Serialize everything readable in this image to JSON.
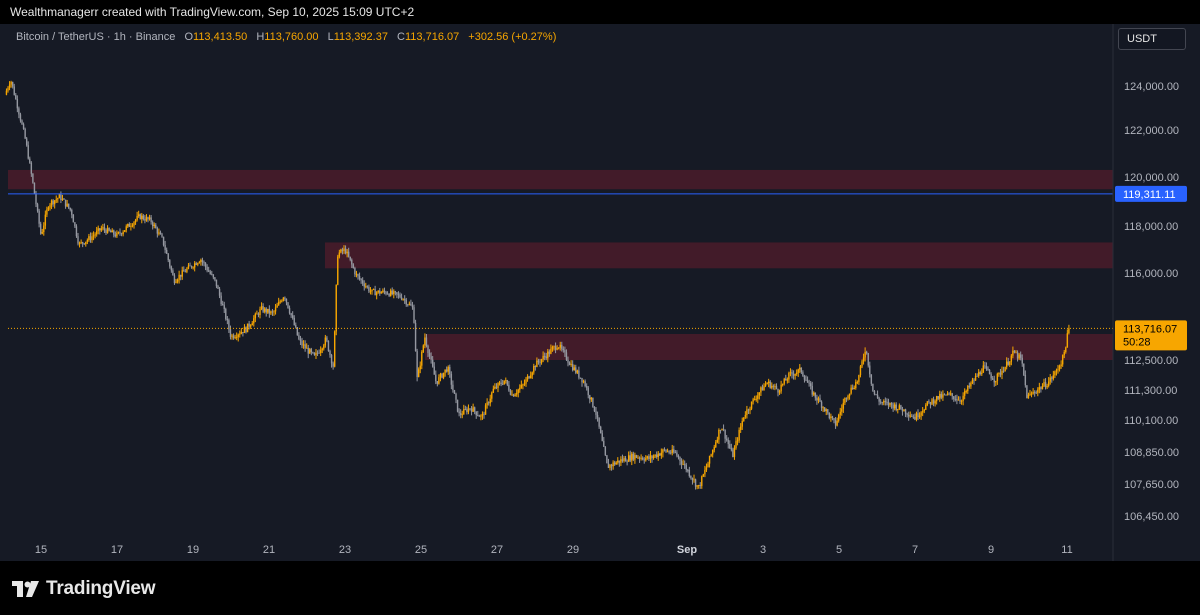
{
  "credit": "Wealthmanagerr created with TradingView.com, Sep 10, 2025 15:09 UTC+2",
  "legend": {
    "symbol": "Bitcoin / TetherUS · 1h · Binance",
    "open_key": "O",
    "open": "113,413.50",
    "high_key": "H",
    "high": "113,760.00",
    "low_key": "L",
    "low": "113,392.37",
    "close_key": "C",
    "close": "113,716.07",
    "change": "+302.56 (+0.27%)"
  },
  "currency": "USDT",
  "logo_text": "TradingView",
  "colors": {
    "background": "#161a25",
    "candle_up": "#f7a600",
    "candle_down": "#9598a1",
    "zone": "#4a1c2a",
    "hline": "#2962ff",
    "price_tag": "#f7a600"
  },
  "chart_data": {
    "type": "candlestick",
    "interval": "1h",
    "y_ticks": [
      "124,000.00",
      "122,000.00",
      "120,000.00",
      "118,000.00",
      "116,000.00",
      "114,000.00",
      "112,500.00",
      "111,300.00",
      "110,100.00",
      "108,850.00",
      "107,650.00",
      "106,450.00"
    ],
    "y_tick_values": [
      124000,
      122000,
      120000,
      118000,
      116000,
      114000,
      112500,
      111300,
      110100,
      108850,
      107650,
      106450
    ],
    "x_ticks": [
      "15",
      "17",
      "19",
      "21",
      "23",
      "25",
      "27",
      "29",
      "Sep",
      "3",
      "5",
      "7",
      "9",
      "11"
    ],
    "x_tick_days": [
      15,
      17,
      19,
      21,
      23,
      25,
      27,
      29,
      32,
      34,
      36,
      38,
      40,
      42
    ],
    "x_start_day": 14.0,
    "x_end_day": 43.2,
    "zones": [
      {
        "from": 119500,
        "to": 120300
      },
      {
        "from": 116200,
        "to": 117300
      },
      {
        "from": 112500,
        "to": 113500
      }
    ],
    "horizontal_line": {
      "value": 119311.11,
      "label": "119,311.11"
    },
    "last_price": {
      "value": 113716.07,
      "label": "113,716.07",
      "countdown": "50:28"
    },
    "path": [
      [
        14.05,
        123600
      ],
      [
        14.2,
        124300
      ],
      [
        14.35,
        123300
      ],
      [
        14.6,
        121500
      ],
      [
        14.8,
        119600
      ],
      [
        15.0,
        117600
      ],
      [
        15.2,
        118900
      ],
      [
        15.5,
        119200
      ],
      [
        15.8,
        118600
      ],
      [
        16.0,
        117200
      ],
      [
        16.3,
        117500
      ],
      [
        16.6,
        117900
      ],
      [
        17.0,
        117600
      ],
      [
        17.3,
        118000
      ],
      [
        17.6,
        118400
      ],
      [
        17.9,
        118200
      ],
      [
        18.2,
        117400
      ],
      [
        18.5,
        115700
      ],
      [
        18.8,
        116100
      ],
      [
        19.2,
        116600
      ],
      [
        19.6,
        115600
      ],
      [
        20.0,
        113400
      ],
      [
        20.4,
        113700
      ],
      [
        20.8,
        114500
      ],
      [
        21.1,
        114300
      ],
      [
        21.4,
        115100
      ],
      [
        21.8,
        113200
      ],
      [
        22.2,
        112600
      ],
      [
        22.5,
        113300
      ],
      [
        22.7,
        112200
      ],
      [
        22.8,
        116800
      ],
      [
        23.0,
        117000
      ],
      [
        23.3,
        115900
      ],
      [
        23.7,
        115200
      ],
      [
        24.1,
        115200
      ],
      [
        24.5,
        115000
      ],
      [
        24.8,
        114500
      ],
      [
        24.9,
        111700
      ],
      [
        25.1,
        113400
      ],
      [
        25.4,
        111600
      ],
      [
        25.7,
        112200
      ],
      [
        26.0,
        110300
      ],
      [
        26.3,
        110600
      ],
      [
        26.6,
        110200
      ],
      [
        26.9,
        111300
      ],
      [
        27.2,
        111700
      ],
      [
        27.4,
        111100
      ],
      [
        27.7,
        111500
      ],
      [
        28.0,
        112300
      ],
      [
        28.3,
        112700
      ],
      [
        28.6,
        113100
      ],
      [
        29.0,
        112200
      ],
      [
        29.3,
        111600
      ],
      [
        29.6,
        110400
      ],
      [
        29.9,
        108300
      ],
      [
        30.2,
        108500
      ],
      [
        30.6,
        108700
      ],
      [
        31.0,
        108600
      ],
      [
        31.4,
        108900
      ],
      [
        31.7,
        108800
      ],
      [
        32.0,
        108200
      ],
      [
        32.3,
        107500
      ],
      [
        32.6,
        108600
      ],
      [
        32.9,
        109900
      ],
      [
        33.2,
        108700
      ],
      [
        33.5,
        110300
      ],
      [
        33.8,
        111000
      ],
      [
        34.1,
        111600
      ],
      [
        34.4,
        111300
      ],
      [
        34.7,
        111900
      ],
      [
        35.0,
        112100
      ],
      [
        35.3,
        111200
      ],
      [
        35.6,
        110600
      ],
      [
        35.9,
        109900
      ],
      [
        36.2,
        111100
      ],
      [
        36.5,
        111700
      ],
      [
        36.7,
        113000
      ],
      [
        36.9,
        111200
      ],
      [
        37.1,
        110800
      ],
      [
        37.4,
        110700
      ],
      [
        37.7,
        110500
      ],
      [
        38.0,
        110200
      ],
      [
        38.3,
        110700
      ],
      [
        38.6,
        111000
      ],
      [
        38.9,
        111100
      ],
      [
        39.2,
        110900
      ],
      [
        39.5,
        111600
      ],
      [
        39.8,
        112200
      ],
      [
        40.1,
        111700
      ],
      [
        40.4,
        112300
      ],
      [
        40.6,
        112800
      ],
      [
        40.8,
        112500
      ],
      [
        40.95,
        111000
      ],
      [
        41.2,
        111300
      ],
      [
        41.5,
        111600
      ],
      [
        41.7,
        112000
      ],
      [
        41.9,
        112600
      ],
      [
        42.05,
        113716
      ]
    ]
  }
}
